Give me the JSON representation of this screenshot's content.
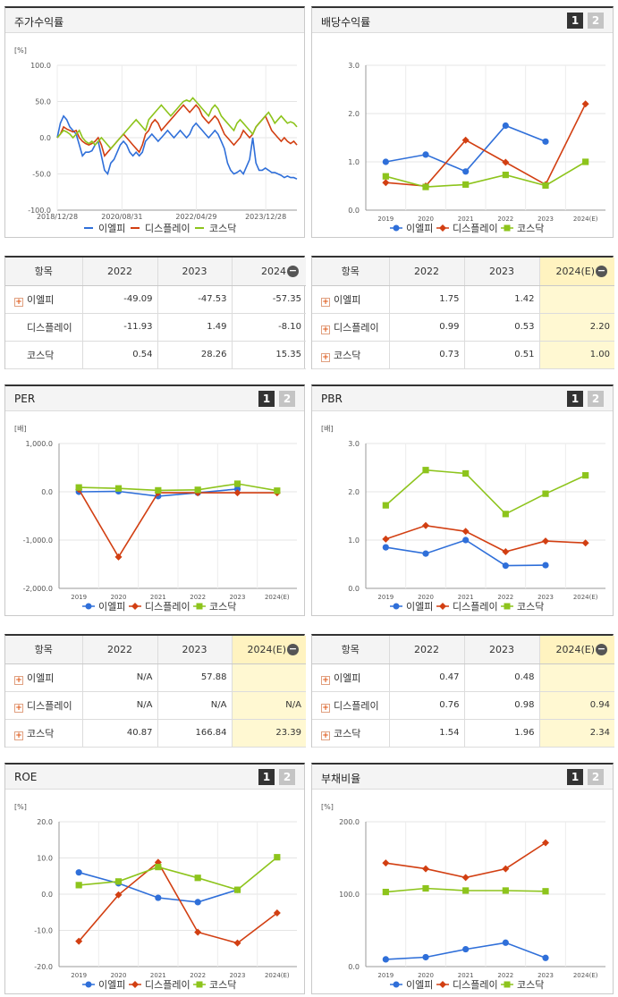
{
  "colors": {
    "a": "#2f6fd9",
    "b": "#d23f12",
    "c": "#8dc41c"
  },
  "legend": [
    "이엘피",
    "디스플레이",
    "코스닥"
  ],
  "pager": [
    "1",
    "2"
  ],
  "panels": {
    "stock": {
      "title": "주가수익률",
      "unit": "[%]"
    },
    "div": {
      "title": "배당수익률",
      "unit": ""
    },
    "per": {
      "title": "PER",
      "unit": "[배]"
    },
    "pbr": {
      "title": "PBR",
      "unit": "[배]"
    },
    "roe": {
      "title": "ROE",
      "unit": "[%]"
    },
    "debt": {
      "title": "부채비율",
      "unit": "[%]"
    }
  },
  "tables": {
    "stock": {
      "headers": [
        "항목",
        "2022",
        "2023",
        "2024"
      ],
      "rows": [
        {
          "name": "이엘피",
          "vals": [
            "-49.09",
            "-47.53",
            "-57.35"
          ]
        },
        {
          "name": "디스플레이",
          "vals": [
            "-11.93",
            "1.49",
            "-8.10"
          ]
        },
        {
          "name": "코스닥",
          "vals": [
            "0.54",
            "28.26",
            "15.35"
          ]
        }
      ]
    },
    "div": {
      "headers": [
        "항목",
        "2022",
        "2023",
        "2024(E)"
      ],
      "rows": [
        {
          "name": "이엘피",
          "vals": [
            "1.75",
            "1.42",
            ""
          ]
        },
        {
          "name": "디스플레이",
          "vals": [
            "0.99",
            "0.53",
            "2.20"
          ]
        },
        {
          "name": "코스닥",
          "vals": [
            "0.73",
            "0.51",
            "1.00"
          ]
        }
      ]
    },
    "per": {
      "headers": [
        "항목",
        "2022",
        "2023",
        "2024(E)"
      ],
      "rows": [
        {
          "name": "이엘피",
          "vals": [
            "N/A",
            "57.88",
            ""
          ]
        },
        {
          "name": "디스플레이",
          "vals": [
            "N/A",
            "N/A",
            "N/A"
          ]
        },
        {
          "name": "코스닥",
          "vals": [
            "40.87",
            "166.84",
            "23.39"
          ]
        }
      ]
    },
    "pbr": {
      "headers": [
        "항목",
        "2022",
        "2023",
        "2024(E)"
      ],
      "rows": [
        {
          "name": "이엘피",
          "vals": [
            "0.47",
            "0.48",
            ""
          ]
        },
        {
          "name": "디스플레이",
          "vals": [
            "0.76",
            "0.98",
            "0.94"
          ]
        },
        {
          "name": "코스닥",
          "vals": [
            "1.54",
            "1.96",
            "2.34"
          ]
        }
      ]
    }
  },
  "chart_data": [
    {
      "id": "stock",
      "type": "line",
      "ylim": [
        -100,
        100
      ],
      "yticks": [
        "100.0",
        "50.0",
        "0.0",
        "-50.0",
        "-100.0"
      ],
      "xticks": [
        "2018/12/28",
        "2020/08/31",
        "2022/04/29",
        "2023/12/28"
      ],
      "series": [
        {
          "name": "이엘피",
          "values": [
            0,
            20,
            30,
            25,
            15,
            10,
            5,
            -10,
            -25,
            -20,
            -20,
            -18,
            -10,
            -5,
            -25,
            -45,
            -50,
            -35,
            -30,
            -20,
            -10,
            -5,
            -10,
            -20,
            -25,
            -20,
            -25,
            -20,
            -5,
            0,
            5,
            0,
            -5,
            0,
            5,
            10,
            5,
            0,
            5,
            10,
            5,
            0,
            5,
            15,
            20,
            15,
            10,
            5,
            0,
            5,
            10,
            5,
            -5,
            -15,
            -35,
            -45,
            -50,
            -48,
            -45,
            -50,
            -40,
            -30,
            0,
            -35,
            -45,
            -45,
            -42,
            -45,
            -48,
            -48,
            -50,
            -52,
            -55,
            -53,
            -55,
            -55,
            -57
          ]
        },
        {
          "name": "디스플레이",
          "values": [
            0,
            5,
            15,
            12,
            10,
            8,
            10,
            0,
            -5,
            -8,
            -10,
            -8,
            -5,
            0,
            -10,
            -25,
            -20,
            -15,
            -10,
            -5,
            0,
            5,
            0,
            -5,
            -10,
            -15,
            -20,
            -10,
            5,
            10,
            20,
            25,
            20,
            10,
            15,
            20,
            25,
            30,
            35,
            40,
            45,
            40,
            35,
            40,
            45,
            40,
            30,
            25,
            20,
            25,
            30,
            25,
            15,
            5,
            0,
            -5,
            -10,
            -5,
            0,
            10,
            5,
            0,
            5,
            15,
            20,
            25,
            30,
            20,
            10,
            5,
            0,
            -5,
            0,
            -5,
            -8,
            -5,
            -10
          ]
        },
        {
          "name": "코스닥",
          "values": [
            0,
            5,
            10,
            8,
            5,
            0,
            5,
            10,
            0,
            -5,
            -8,
            -5,
            -10,
            -5,
            0,
            -5,
            -10,
            -15,
            -10,
            -5,
            0,
            5,
            10,
            15,
            20,
            25,
            20,
            15,
            10,
            25,
            30,
            35,
            40,
            45,
            40,
            35,
            30,
            35,
            40,
            45,
            50,
            52,
            50,
            55,
            50,
            45,
            40,
            35,
            30,
            40,
            45,
            40,
            30,
            25,
            20,
            15,
            10,
            20,
            25,
            20,
            15,
            10,
            5,
            15,
            20,
            25,
            30,
            35,
            28,
            20,
            25,
            30,
            25,
            20,
            22,
            20,
            15
          ]
        }
      ]
    },
    {
      "id": "div",
      "type": "line",
      "ylim": [
        0,
        3
      ],
      "yticks": [
        "3.0",
        "2.0",
        "1.0",
        "0.0"
      ],
      "categories": [
        "2019",
        "2020",
        "2021",
        "2022",
        "2023",
        "2024(E)"
      ],
      "series": [
        {
          "name": "이엘피",
          "values": [
            1.0,
            1.15,
            0.8,
            1.75,
            1.42,
            null
          ]
        },
        {
          "name": "디스플레이",
          "values": [
            0.57,
            0.5,
            1.45,
            0.99,
            0.53,
            2.2
          ]
        },
        {
          "name": "코스닥",
          "values": [
            0.7,
            0.48,
            0.53,
            0.73,
            0.51,
            1.0
          ]
        }
      ]
    },
    {
      "id": "per",
      "type": "line",
      "ylim": [
        -2000,
        1000
      ],
      "yticks": [
        "1,000.0",
        "0.0",
        "-1,000.0",
        "-2,000.0"
      ],
      "categories": [
        "2019",
        "2020",
        "2021",
        "2022",
        "2023",
        "2024(E)"
      ],
      "series": [
        {
          "name": "이엘피",
          "values": [
            0,
            10,
            -90,
            -20,
            57.88,
            null
          ]
        },
        {
          "name": "디스플레이",
          "values": [
            50,
            -1350,
            -20,
            -20,
            -20,
            -20
          ]
        },
        {
          "name": "코스닥",
          "values": [
            90,
            70,
            30,
            40.87,
            166.84,
            23.39
          ]
        }
      ]
    },
    {
      "id": "pbr",
      "type": "line",
      "ylim": [
        0,
        3
      ],
      "yticks": [
        "3.0",
        "2.0",
        "1.0",
        "0.0"
      ],
      "categories": [
        "2019",
        "2020",
        "2021",
        "2022",
        "2023",
        "2024(E)"
      ],
      "series": [
        {
          "name": "이엘피",
          "values": [
            0.85,
            0.72,
            1.0,
            0.47,
            0.48,
            null
          ]
        },
        {
          "name": "디스플레이",
          "values": [
            1.02,
            1.3,
            1.18,
            0.76,
            0.98,
            0.94
          ]
        },
        {
          "name": "코스닥",
          "values": [
            1.72,
            2.45,
            2.38,
            1.54,
            1.96,
            2.34
          ]
        }
      ]
    },
    {
      "id": "roe",
      "type": "line",
      "ylim": [
        -20,
        20
      ],
      "yticks": [
        "20.0",
        "10.0",
        "0.0",
        "-10.0",
        "-20.0"
      ],
      "categories": [
        "2019",
        "2020",
        "2021",
        "2022",
        "2023",
        "2024(E)"
      ],
      "series": [
        {
          "name": "이엘피",
          "values": [
            6.0,
            3.0,
            -1.0,
            -2.2,
            1.2,
            null
          ]
        },
        {
          "name": "디스플레이",
          "values": [
            -13.0,
            -0.2,
            8.8,
            -10.5,
            -13.5,
            -5.2
          ]
        },
        {
          "name": "코스닥",
          "values": [
            2.5,
            3.5,
            7.5,
            4.5,
            1.2,
            10.2
          ]
        }
      ]
    },
    {
      "id": "debt",
      "type": "line",
      "ylim": [
        0,
        200
      ],
      "yticks": [
        "200.0",
        "100.0",
        "0.0"
      ],
      "categories": [
        "2019",
        "2020",
        "2021",
        "2022",
        "2023",
        "2024(E)"
      ],
      "series": [
        {
          "name": "이엘피",
          "values": [
            10,
            13,
            24,
            33,
            12,
            null
          ]
        },
        {
          "name": "디스플레이",
          "values": [
            143,
            135,
            123,
            135,
            171,
            null
          ]
        },
        {
          "name": "코스닥",
          "values": [
            103,
            108,
            105,
            105,
            104,
            null
          ]
        }
      ]
    }
  ]
}
